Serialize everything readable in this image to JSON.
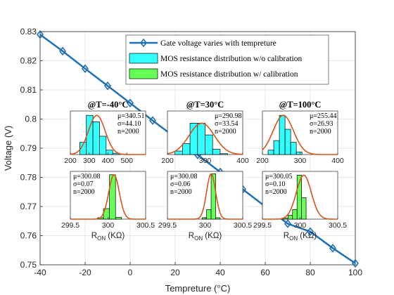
{
  "chart_data": [
    {
      "type": "line",
      "xlabel": "Tempreture (°C)",
      "ylabel": "Voltage (V)",
      "xlim": [
        -40,
        100
      ],
      "ylim": [
        0.75,
        0.83
      ],
      "xticks": [
        "-40",
        "-20",
        "0",
        "20",
        "40",
        "60",
        "80",
        "100"
      ],
      "yticks": [
        "0.75",
        "0.76",
        "0.77",
        "0.78",
        "0.79",
        "0.8",
        "0.81",
        "0.82",
        "0.83"
      ],
      "grid": true,
      "legend_position": "top-right",
      "series": [
        {
          "name": "Gate voltage varies with tempreture",
          "color": "#1f6fb2",
          "marker": "diamond",
          "x": [
            -40,
            -30,
            -20,
            -10,
            0,
            10,
            20,
            30,
            40,
            50,
            60,
            70,
            80,
            90,
            100
          ],
          "y": [
            0.829,
            0.8233,
            0.8173,
            0.8114,
            0.8055,
            0.7995,
            0.7937,
            0.7877,
            0.7818,
            0.7759,
            0.77,
            0.7641,
            0.7614,
            0.7557,
            0.7505
          ]
        }
      ],
      "legend": [
        {
          "label": "Gate voltage varies with tempreture",
          "kind": "line",
          "color": "#1f6fb2"
        },
        {
          "label": "MOS resistance distribution w/o calibration",
          "kind": "patch",
          "color": "#33ffff"
        },
        {
          "label": "MOS resistance distribution w/ calibration",
          "kind": "patch",
          "color": "#66ff55"
        }
      ]
    },
    {
      "type": "bar",
      "title": "@T=-40°C",
      "calibration": "w/o",
      "color": "#33ffff",
      "xlim": [
        200,
        600
      ],
      "xticks": [
        "200",
        "300",
        "400",
        "500"
      ],
      "bin_edges": [
        250,
        285,
        320,
        355,
        390,
        425,
        460
      ],
      "counts": [
        0.28,
        0.9,
        0.75,
        0.42,
        0.1,
        0.03
      ],
      "fit_curve": {
        "mean": 340.51,
        "sigma": 44.1
      },
      "stats": [
        "μ=340.51",
        "σ=44.10",
        "n=2000"
      ]
    },
    {
      "type": "bar",
      "title": "@T=30°C",
      "calibration": "w/o",
      "color": "#33ffff",
      "xlim": [
        200,
        400
      ],
      "xticks": [
        "200",
        "300",
        "400"
      ],
      "bin_edges": [
        220,
        240,
        260,
        280,
        300,
        320,
        340,
        360
      ],
      "counts": [
        0.08,
        0.25,
        0.72,
        0.72,
        0.45,
        0.12,
        0.02
      ],
      "fit_curve": {
        "mean": 290.98,
        "sigma": 33.54
      },
      "stats": [
        "μ=290.98",
        "σ=33.54",
        "n=2000"
      ]
    },
    {
      "type": "bar",
      "title": "@T=100°C",
      "calibration": "w/o",
      "color": "#33ffff",
      "xlim": [
        200,
        400
      ],
      "xticks": [
        "200",
        "300",
        "400"
      ],
      "bin_edges": [
        215,
        230,
        245,
        260,
        275,
        290,
        305
      ],
      "counts": [
        0.1,
        0.32,
        0.9,
        0.58,
        0.28,
        0.06
      ],
      "fit_curve": {
        "mean": 255.44,
        "sigma": 26.93
      },
      "stats": [
        "μ=255.44",
        "σ=26.93",
        "n=2000"
      ]
    },
    {
      "type": "bar",
      "title": "",
      "calibration": "w/",
      "color": "#66ff55",
      "xlim": [
        299.5,
        300.5
      ],
      "xticks": [
        "299.5",
        "300",
        "300.5"
      ],
      "xlabel": "R_ON (KΩ)",
      "bin_edges": [
        299.86,
        299.94,
        300.02,
        300.1,
        300.18
      ],
      "counts": [
        0.03,
        0.22,
        0.93,
        0.04
      ],
      "fit_curve": {
        "mean": 300.08,
        "sigma": 0.07
      },
      "stats": [
        "μ=300.08",
        "σ=0.07",
        "n=2000"
      ]
    },
    {
      "type": "bar",
      "title": "",
      "calibration": "w/",
      "color": "#66ff55",
      "xlim": [
        299.5,
        300.5
      ],
      "xticks": [
        "299.5",
        "300",
        "300.5"
      ],
      "xlabel": "R_ON (KΩ)",
      "bin_edges": [
        299.96,
        300.02,
        300.08,
        300.14,
        300.2
      ],
      "counts": [
        0.03,
        0.2,
        0.95,
        0.03
      ],
      "fit_curve": {
        "mean": 300.08,
        "sigma": 0.06
      },
      "stats": [
        "μ=300.08",
        "σ=0.06",
        "n=2000"
      ]
    },
    {
      "type": "bar",
      "title": "",
      "calibration": "w/",
      "color": "#66ff55",
      "xlim": [
        299.5,
        300.5
      ],
      "xticks": [
        "299.5",
        "300",
        "300.5"
      ],
      "xlabel": "R_ON (KΩ)",
      "bin_edges": [
        299.78,
        299.84,
        299.9,
        299.96,
        300.02,
        300.08
      ],
      "counts": [
        0.02,
        0.08,
        0.2,
        0.92,
        0.45
      ],
      "fit_curve": {
        "mean": 300.05,
        "sigma": 0.1
      },
      "stats": [
        "μ=300.05",
        "σ=0.10",
        "n=2000"
      ]
    }
  ]
}
